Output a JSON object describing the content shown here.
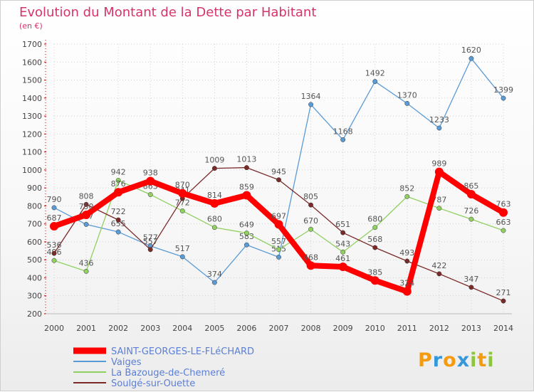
{
  "chart_data": {
    "type": "line",
    "title": "Evolution du Montant de la Dette par Habitant",
    "subtitle": "(en €)",
    "x": [
      "2000",
      "2001",
      "2002",
      "2003",
      "2004",
      "2005",
      "2006",
      "2007",
      "2008",
      "2009",
      "2010",
      "2011",
      "2012",
      "2013",
      "2014"
    ],
    "ylim": [
      200,
      1700
    ],
    "yticks": [
      200,
      300,
      400,
      500,
      600,
      700,
      800,
      900,
      1000,
      1100,
      1200,
      1300,
      1400,
      1500,
      1600,
      1700
    ],
    "grid": true,
    "legend_position": "bottom-left",
    "series": [
      {
        "name": "SAINT-GEORGES-LE-FLéCHARD",
        "color": "#ff0000",
        "highlight": true,
        "values": [
          687,
          750,
          876,
          938,
          870,
          814,
          859,
          697,
          468,
          461,
          385,
          324,
          989,
          865,
          763
        ]
      },
      {
        "name": "Vaiges",
        "color": "#5b9bd5",
        "values": [
          790,
          697,
          655,
          577,
          517,
          374,
          583,
          515,
          1364,
          1168,
          1492,
          1370,
          1233,
          1620,
          1399
        ]
      },
      {
        "name": "La Bazouge-de-Chemeré",
        "color": "#90d060",
        "values": [
          496,
          436,
          942,
          863,
          772,
          680,
          649,
          557,
          670,
          543,
          680,
          852,
          787,
          726,
          663
        ]
      },
      {
        "name": "Soulgé-sur-Ouette",
        "color": "#7b2a2a",
        "values": [
          536,
          808,
          722,
          557,
          841,
          1009,
          1013,
          945,
          805,
          651,
          568,
          493,
          422,
          347,
          271
        ]
      }
    ]
  },
  "logo": {
    "letters": [
      "P",
      "r",
      "o",
      "x",
      "i",
      "t",
      "i"
    ],
    "colors": [
      "#f39c12",
      "#3498db",
      "#f39c12",
      "#3498db",
      "#8cc63f",
      "#f39c12",
      "#8cc63f"
    ]
  }
}
